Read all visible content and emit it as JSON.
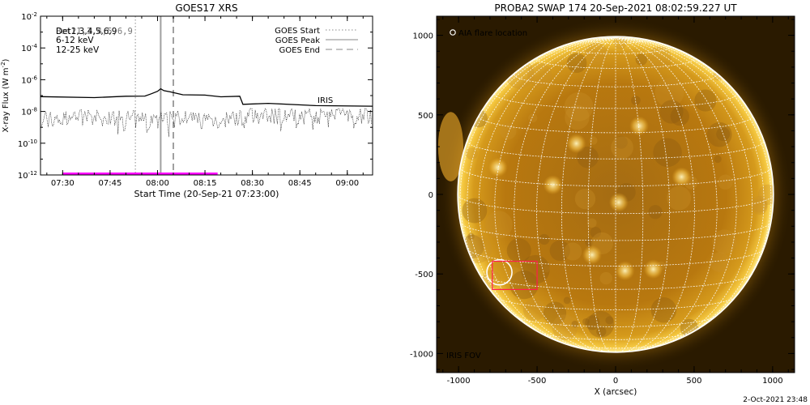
{
  "footer_date": "2-Oct-2021 23:48",
  "colors": {
    "pink": "#ff00ff",
    "green": "#00c800",
    "gray": "#a0a0a0",
    "sun_core": "#c8820f",
    "sun_edge": "#fff0a0",
    "sky": "#2a1a00",
    "iris_fov": "#ff1e4c"
  },
  "chart_data": [
    {
      "type": "line",
      "title": "GOES17 XRS",
      "xlabel": "Start Time (20-Sep-21 07:23:00)",
      "ylabel": "X-ray Flux (W m",
      "ylabel_sup": "-2",
      "ylabel_close": ")",
      "y_scale": "log",
      "xlim": [
        "07:23",
        "09:08"
      ],
      "ylim": [
        1e-12,
        0.01
      ],
      "x_ticks": [
        "07:30",
        "07:45",
        "08:00",
        "08:15",
        "08:30",
        "08:45",
        "09:00"
      ],
      "y_ticks": [
        {
          "base": "10",
          "exp": "-12",
          "value": 1e-12
        },
        {
          "base": "10",
          "exp": "-10",
          "value": 1e-10
        },
        {
          "base": "10",
          "exp": "-8",
          "value": 1e-08
        },
        {
          "base": "10",
          "exp": "-6",
          "value": 1e-06
        },
        {
          "base": "10",
          "exp": "-4",
          "value": 0.0001
        },
        {
          "base": "10",
          "exp": "-2",
          "value": 0.01
        }
      ],
      "legend_left": [
        {
          "label": "Det1,3,4,5,6,9",
          "color": "#000000"
        },
        {
          "label": "6-12 keV",
          "color": "#ff00ff"
        },
        {
          "label": "12-25 keV",
          "color": "#00c800"
        }
      ],
      "legend_left_overlay": "Bet21,3,4,5,6,9",
      "legend_right": [
        {
          "label": "GOES Start",
          "style": "dotted"
        },
        {
          "label": "GOES Peak",
          "style": "solid"
        },
        {
          "label": "GOES End",
          "style": "dashed"
        }
      ],
      "goes_start": "07:53",
      "goes_peak": "08:01",
      "goes_end": "08:05",
      "iris_label": "IRIS",
      "iris_bar": {
        "start": "07:30",
        "end": "08:19",
        "value": 1e-12
      },
      "series": [
        {
          "name": "Long channel",
          "color": "#000000",
          "points": [
            [
              "07:23",
              8e-08
            ],
            [
              "07:40",
              8e-08
            ],
            [
              "07:50",
              8.5e-08
            ],
            [
              "07:56",
              1e-07
            ],
            [
              "07:58",
              1.2e-07
            ],
            [
              "08:00",
              2e-07
            ],
            [
              "08:01",
              2.5e-07
            ],
            [
              "08:02",
              2.2e-07
            ],
            [
              "08:04",
              1.6e-07
            ],
            [
              "08:08",
              1.2e-07
            ],
            [
              "08:15",
              1e-07
            ],
            [
              "08:20",
              9e-08
            ],
            [
              "08:26",
              8.5e-08
            ],
            [
              "08:27",
              3e-08
            ],
            [
              "08:35",
              3e-08
            ],
            [
              "08:50",
              2.5e-08
            ],
            [
              "09:08",
              2e-08
            ]
          ]
        },
        {
          "name": "Short channel",
          "color": "#000000",
          "style": "dotted",
          "baseline": 3e-09,
          "noise_max": 1.5e-08,
          "noise_min": 2e-10
        }
      ]
    },
    {
      "type": "heatmap",
      "title": "PROBA2 SWAP 174 20-Sep-2021 08:02:59.227 UT",
      "xlabel": "X (arcsec)",
      "ylabel": "",
      "xlim": [
        -1140,
        1140
      ],
      "ylim": [
        -1120,
        1120
      ],
      "x_ticks": [
        -1000,
        -500,
        0,
        500,
        1000
      ],
      "y_ticks": [
        -1000,
        -500,
        0,
        500,
        1000
      ],
      "solar_radius": 1005,
      "annotation": "AIA flare location",
      "iris_fov_label": "IRIS FOV",
      "flare_circle": {
        "x": -740,
        "y": -490,
        "r": 80
      },
      "iris_fov": {
        "x0": -785,
        "x1": -500,
        "y0": -600,
        "y1": -420
      },
      "grid_spacing_deg": 10,
      "b0_deg": 7,
      "active_regions": [
        {
          "x": -250,
          "y": 320
        },
        {
          "x": 150,
          "y": 430
        },
        {
          "x": 420,
          "y": 110
        },
        {
          "x": -400,
          "y": 60
        },
        {
          "x": 20,
          "y": -50
        },
        {
          "x": 60,
          "y": -480
        },
        {
          "x": 240,
          "y": -470
        },
        {
          "x": -150,
          "y": -380
        },
        {
          "x": -750,
          "y": 170
        }
      ]
    }
  ]
}
